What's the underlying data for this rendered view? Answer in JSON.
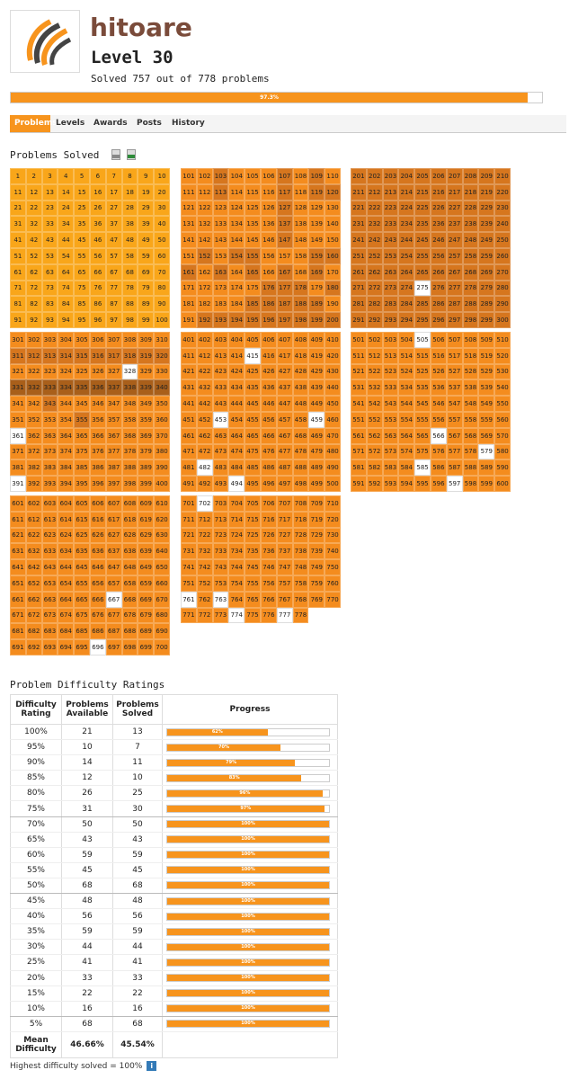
{
  "profile": {
    "username": "hitoare",
    "level": "Level 30",
    "solved_text": "Solved 757 out of 778 problems",
    "progress_label": "97.3%",
    "progress_value": 0.973
  },
  "nav": {
    "tabs": [
      "Problems",
      "Levels",
      "Awards",
      "Posts",
      "History"
    ],
    "active": "Problems"
  },
  "problems_solved": {
    "title": "Problems Solved",
    "icons": [
      "document-icon",
      "spreadsheet-icon"
    ],
    "colors": {
      "1": "#f9a61a",
      "2": "#f48c1e",
      "3": "#d6761e",
      "4": "#a95f1a",
      "5": "#7a4a18",
      "0": "#ffffff"
    },
    "unsolved": [
      275,
      328,
      361,
      391,
      415,
      453,
      459,
      482,
      494,
      505,
      566,
      579,
      585,
      597,
      667,
      696,
      702,
      761,
      763,
      774,
      777
    ],
    "shade_rows": {
      "1": [
        "1111111111",
        "1111111111",
        "1111111111",
        "1111111111",
        "1111111111",
        "1111111111",
        "1111111111",
        "1111111111",
        "1111111111",
        "1111111111"
      ],
      "101": [
        "2232223232",
        "2232223233",
        "2222223222",
        "2222223222",
        "2222223222",
        "2323322233",
        "3232323232",
        "2222233323",
        "2222333332",
        "2333333333"
      ],
      "201": [
        "3333333333",
        "3333333333",
        "3333333333",
        "3333333333",
        "3333333333",
        "3333333333",
        "3333333333",
        "3333333333",
        "3333333333",
        "3333333333"
      ],
      "301": [
        "2222222222",
        "3333333333",
        "2222222222",
        "4444444444",
        "2232222222",
        "2222322222",
        "2222222222",
        "2222222222",
        "2222222222",
        "2222222222"
      ],
      "401": [
        "2222222222",
        "2222222222",
        "2222222222",
        "2222222222",
        "2222222222",
        "2222222222",
        "2222222222",
        "2222222222",
        "2222222222",
        "2222222222"
      ],
      "501": [
        "2222222222",
        "2222222222",
        "2222222222",
        "2222222222",
        "2222222222",
        "2222222222",
        "2222222222",
        "2222222222",
        "2222222222",
        "2222222222"
      ],
      "601": [
        "2222222222",
        "2222222222",
        "2222222222",
        "2222222222",
        "2222222222",
        "2222222222",
        "2222222222",
        "2222222222",
        "2222222222",
        "2222222222"
      ],
      "701": [
        "2222222222",
        "2222222222",
        "2222222222",
        "2222222222",
        "2222222222",
        "2222222222",
        "2222222222",
        "2222222200",
        "0000000000",
        "0000000000"
      ]
    }
  },
  "difficulty": {
    "title": "Problem Difficulty Ratings",
    "headers": [
      "Difficulty Rating",
      "Problems Available",
      "Problems Solved",
      "Progress"
    ],
    "rows": [
      {
        "rating": "100%",
        "available": "21",
        "solved": "13",
        "pct": "62%",
        "value": 62
      },
      {
        "rating": "95%",
        "available": "10",
        "solved": "7",
        "pct": "70%",
        "value": 70
      },
      {
        "rating": "90%",
        "available": "14",
        "solved": "11",
        "pct": "79%",
        "value": 79
      },
      {
        "rating": "85%",
        "available": "12",
        "solved": "10",
        "pct": "83%",
        "value": 83
      },
      {
        "rating": "80%",
        "available": "26",
        "solved": "25",
        "pct": "96%",
        "value": 96
      },
      {
        "rating": "75%",
        "available": "31",
        "solved": "30",
        "pct": "97%",
        "value": 97
      },
      {
        "rating": "70%",
        "available": "50",
        "solved": "50",
        "pct": "100%",
        "value": 100
      },
      {
        "rating": "65%",
        "available": "43",
        "solved": "43",
        "pct": "100%",
        "value": 100
      },
      {
        "rating": "60%",
        "available": "59",
        "solved": "59",
        "pct": "100%",
        "value": 100
      },
      {
        "rating": "55%",
        "available": "45",
        "solved": "45",
        "pct": "100%",
        "value": 100
      },
      {
        "rating": "50%",
        "available": "68",
        "solved": "68",
        "pct": "100%",
        "value": 100
      },
      {
        "rating": "45%",
        "available": "48",
        "solved": "48",
        "pct": "100%",
        "value": 100
      },
      {
        "rating": "40%",
        "available": "56",
        "solved": "56",
        "pct": "100%",
        "value": 100
      },
      {
        "rating": "35%",
        "available": "59",
        "solved": "59",
        "pct": "100%",
        "value": 100
      },
      {
        "rating": "30%",
        "available": "44",
        "solved": "44",
        "pct": "100%",
        "value": 100
      },
      {
        "rating": "25%",
        "available": "41",
        "solved": "41",
        "pct": "100%",
        "value": 100
      },
      {
        "rating": "20%",
        "available": "33",
        "solved": "33",
        "pct": "100%",
        "value": 100
      },
      {
        "rating": "15%",
        "available": "22",
        "solved": "22",
        "pct": "100%",
        "value": 100
      },
      {
        "rating": "10%",
        "available": "16",
        "solved": "16",
        "pct": "100%",
        "value": 100
      },
      {
        "rating": "5%",
        "available": "68",
        "solved": "68",
        "pct": "100%",
        "value": 100
      }
    ],
    "mean_label": "Mean Difficulty",
    "mean_available": "46.66%",
    "mean_solved": "45.54%",
    "footnote": "Highest difficulty solved = 100%",
    "info_icon": "i"
  }
}
